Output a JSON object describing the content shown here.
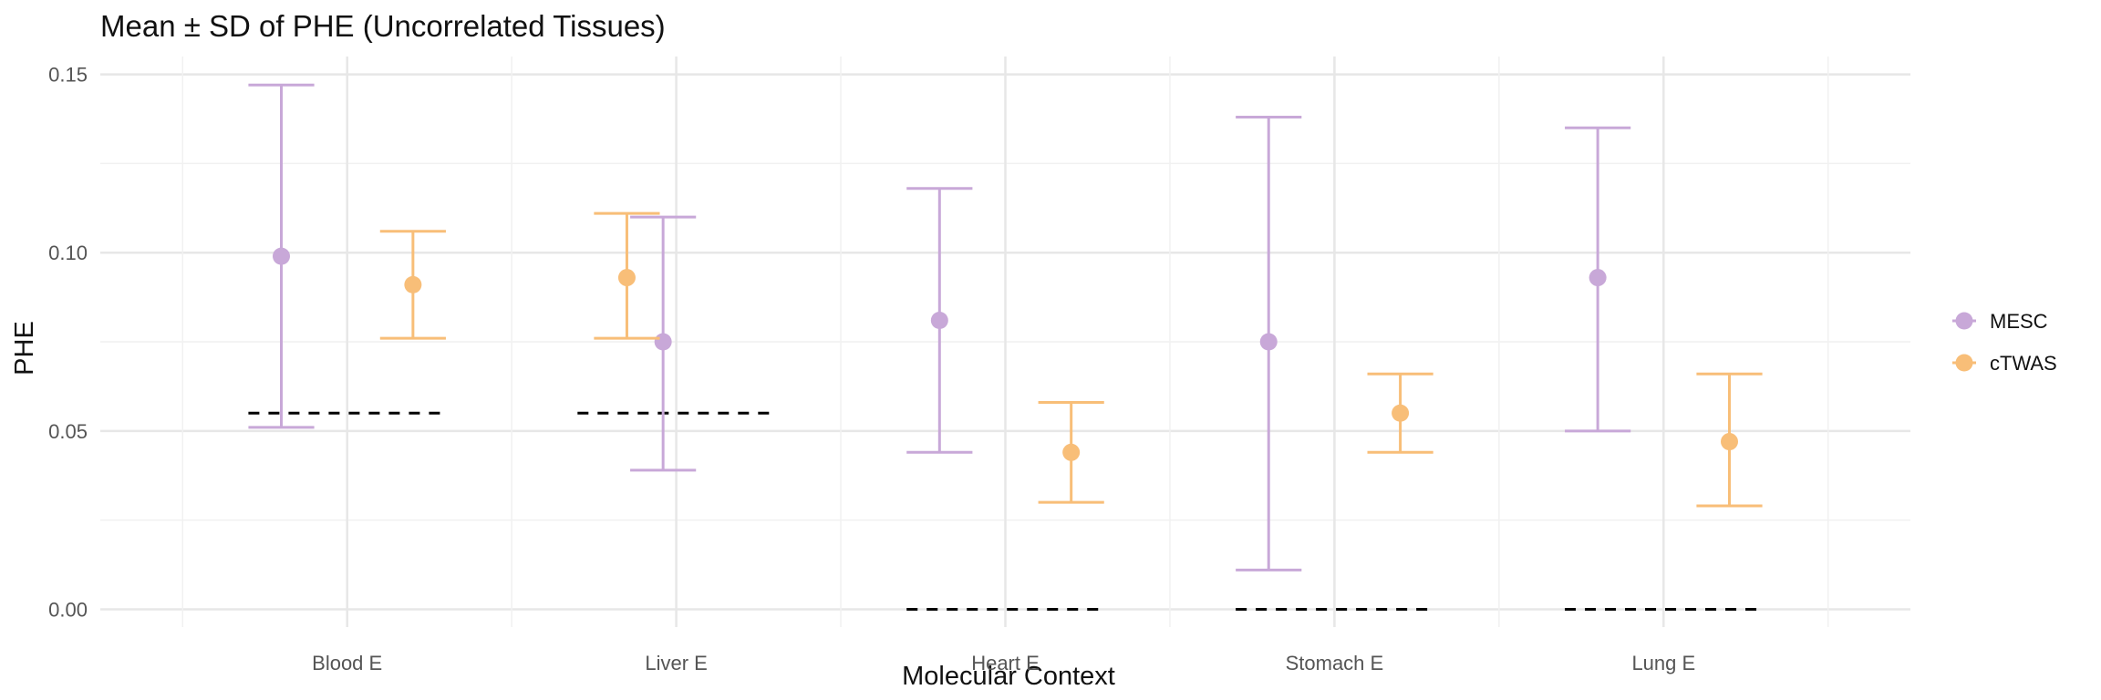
{
  "chart_data": {
    "type": "errorbar-dot",
    "title": "Mean ± SD of PHE (Uncorrelated Tissues)",
    "xlabel": "Molecular Context",
    "ylabel": "PHE",
    "categories": [
      "Blood E",
      "Liver E",
      "Heart E",
      "Stomach E",
      "Lung E"
    ],
    "ylim": [
      -0.005,
      0.155
    ],
    "yticks": [
      0.0,
      0.05,
      0.1,
      0.15
    ],
    "ytick_labels": [
      "0.00",
      "0.05",
      "0.10",
      "0.15"
    ],
    "grid": true,
    "legend_position": "right",
    "series": [
      {
        "name": "MESC",
        "color": "#c8a8d8",
        "mean": [
          0.099,
          0.075,
          0.081,
          0.075,
          0.093
        ],
        "lower": [
          0.051,
          0.039,
          0.044,
          0.011,
          0.05
        ],
        "upper": [
          0.147,
          0.11,
          0.118,
          0.138,
          0.135
        ]
      },
      {
        "name": "cTWAS",
        "color": "#f8be78",
        "mean": [
          0.091,
          0.093,
          0.044,
          0.055,
          0.047
        ],
        "lower": [
          0.076,
          0.076,
          0.03,
          0.044,
          0.029
        ],
        "upper": [
          0.106,
          0.111,
          0.058,
          0.066,
          0.066
        ]
      }
    ],
    "reference_lines": [
      0.055,
      0.055,
      0.0,
      0.0,
      0.0
    ]
  }
}
